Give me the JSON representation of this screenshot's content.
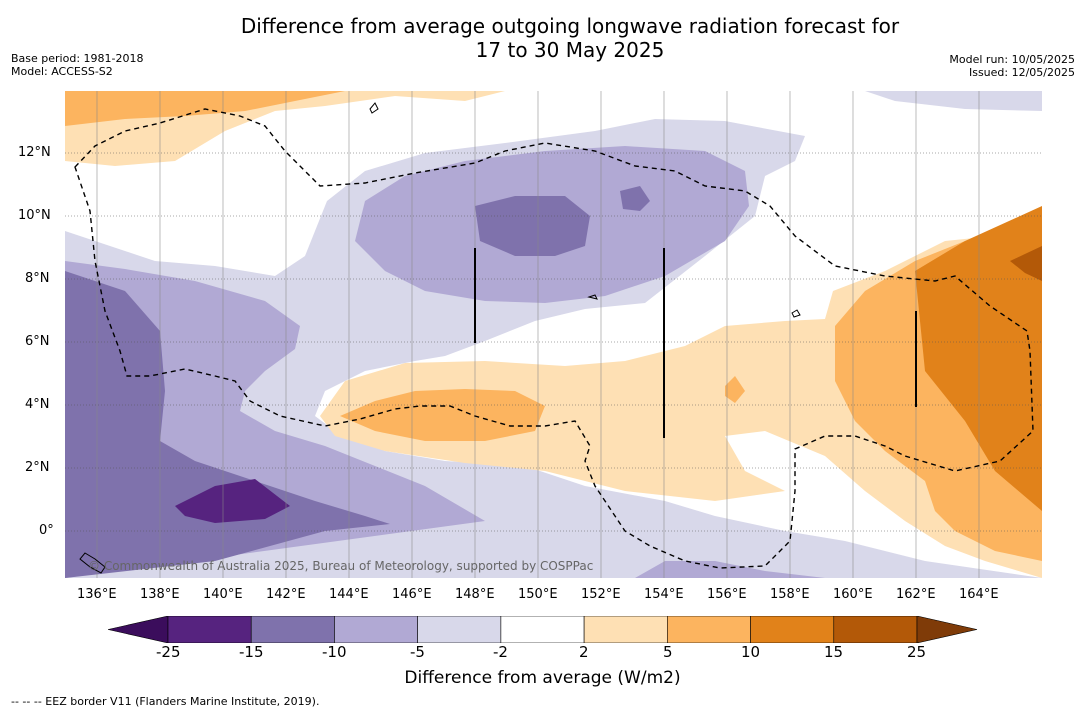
{
  "title_line1": "Difference from average outgoing longwave radiation forecast for",
  "title_line2": "17 to 30 May 2025",
  "base_period": "Base period: 1981-2018",
  "model": "Model: ACCESS-S2",
  "model_run": "Model run: 10/05/2025",
  "issued": "Issued: 12/05/2025",
  "copyright": "© Commonwealth of Australia 2025, Bureau of Meteorology, supported by COSPPac",
  "lon_labels": [
    "136°E",
    "138°E",
    "140°E",
    "142°E",
    "144°E",
    "146°E",
    "148°E",
    "150°E",
    "152°E",
    "154°E",
    "156°E",
    "158°E",
    "160°E",
    "162°E",
    "164°E"
  ],
  "lat_labels": [
    "12°N",
    "10°N",
    "8°N",
    "6°N",
    "4°N",
    "2°N",
    "0°"
  ],
  "colorbar": {
    "ticks": [
      "-25",
      "-15",
      "-10",
      "-5",
      "-2",
      "2",
      "5",
      "10",
      "15",
      "25"
    ],
    "colors": [
      "#56237f",
      "#7f72ac",
      "#b1a9d4",
      "#d8d8ea",
      "#ffffff",
      "#fee0b4",
      "#fcb45f",
      "#e1821a",
      "#b35908"
    ],
    "under_color": "#3b0d5c",
    "over_color": "#7f3b08",
    "label": "Difference from average (W/m2)"
  },
  "footer": "--  --  -- EEZ border V11 (Flanders Marine Institute, 2019)."
}
